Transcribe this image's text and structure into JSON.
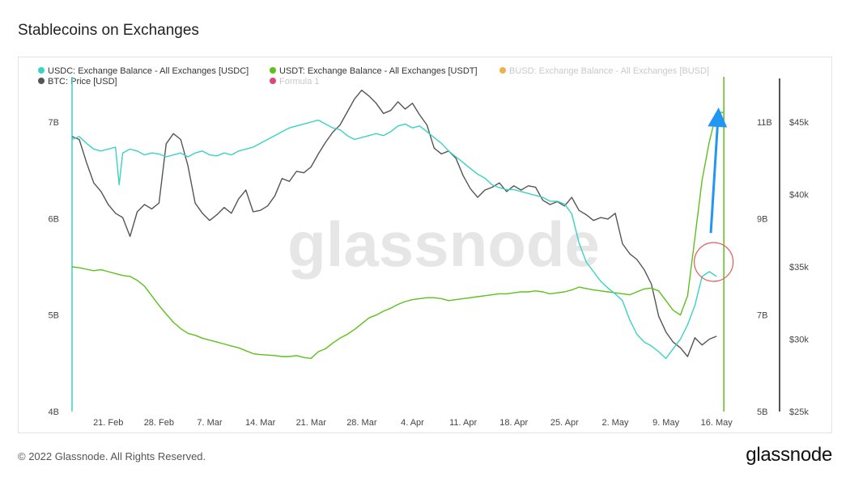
{
  "header": {
    "title": "Stablecoins on Exchanges"
  },
  "footer": {
    "copyright": "© 2022 Glassnode. All Rights Reserved.",
    "brand": "glassnode"
  },
  "watermark": "glassnode",
  "colors": {
    "usdc": "#3ad2c4",
    "usdt": "#5cc11a",
    "busd": "#f0b14a",
    "btc": "#555555",
    "formula": "#e0457b",
    "arrow": "#2196f3",
    "circle": "#e05a5a"
  },
  "chart_data": {
    "type": "line",
    "legend": [
      {
        "key": "usdc",
        "label": "USDC: Exchange Balance - All Exchanges [USDC]",
        "active": true
      },
      {
        "key": "usdt",
        "label": "USDT: Exchange Balance - All Exchanges [USDT]",
        "active": true
      },
      {
        "key": "busd",
        "label": "BUSD: Exchange Balance - All Exchanges [BUSD]",
        "active": false
      },
      {
        "key": "btc",
        "label": "BTC: Price [USD]",
        "active": true
      },
      {
        "key": "formula",
        "label": "Formula 1",
        "active": false
      }
    ],
    "x_ticks": [
      "21. Feb",
      "28. Feb",
      "7. Mar",
      "14. Mar",
      "21. Mar",
      "28. Mar",
      "4. Apr",
      "11. Apr",
      "18. Apr",
      "25. Apr",
      "2. May",
      "9. May",
      "16. May"
    ],
    "x_tick_days": [
      21,
      28,
      35,
      42,
      49,
      56,
      63,
      70,
      77,
      84,
      91,
      98,
      105
    ],
    "x_range_days": [
      16,
      109
    ],
    "axes": {
      "usdc": {
        "ticks": [
          "4B",
          "5B",
          "6B",
          "7B"
        ],
        "range": [
          4.0,
          7.0
        ]
      },
      "usdt": {
        "ticks": [
          "5B",
          "7B",
          "9B",
          "11B"
        ],
        "range": [
          5.0,
          11.0
        ]
      },
      "btc": {
        "ticks": [
          "$25k",
          "$30k",
          "$35k",
          "$40k",
          "$45k"
        ],
        "range": [
          25000,
          45000
        ]
      }
    },
    "series": [
      {
        "key": "usdc",
        "name": "USDC: Exchange Balance - All Exchanges [USDC]",
        "points": [
          [
            16,
            6.82
          ],
          [
            17,
            6.85
          ],
          [
            18,
            6.78
          ],
          [
            19,
            6.72
          ],
          [
            20,
            6.7
          ],
          [
            21,
            6.72
          ],
          [
            22,
            6.74
          ],
          [
            22.5,
            6.35
          ],
          [
            23,
            6.68
          ],
          [
            24,
            6.72
          ],
          [
            25,
            6.7
          ],
          [
            26,
            6.66
          ],
          [
            27,
            6.68
          ],
          [
            28,
            6.67
          ],
          [
            29,
            6.64
          ],
          [
            30,
            6.66
          ],
          [
            31,
            6.68
          ],
          [
            32,
            6.64
          ],
          [
            33,
            6.68
          ],
          [
            34,
            6.7
          ],
          [
            35,
            6.66
          ],
          [
            36,
            6.65
          ],
          [
            37,
            6.68
          ],
          [
            38,
            6.66
          ],
          [
            39,
            6.7
          ],
          [
            40,
            6.72
          ],
          [
            41,
            6.74
          ],
          [
            42,
            6.78
          ],
          [
            43,
            6.82
          ],
          [
            44,
            6.86
          ],
          [
            45,
            6.9
          ],
          [
            46,
            6.94
          ],
          [
            47,
            6.96
          ],
          [
            48,
            6.98
          ],
          [
            49,
            7.0
          ],
          [
            50,
            7.02
          ],
          [
            51,
            6.98
          ],
          [
            52,
            6.94
          ],
          [
            53,
            6.92
          ],
          [
            54,
            6.86
          ],
          [
            55,
            6.82
          ],
          [
            56,
            6.84
          ],
          [
            57,
            6.86
          ],
          [
            58,
            6.88
          ],
          [
            59,
            6.86
          ],
          [
            60,
            6.9
          ],
          [
            61,
            6.96
          ],
          [
            62,
            6.98
          ],
          [
            63,
            6.94
          ],
          [
            64,
            6.96
          ],
          [
            65,
            6.9
          ],
          [
            66,
            6.84
          ],
          [
            67,
            6.78
          ],
          [
            68,
            6.7
          ],
          [
            69,
            6.64
          ],
          [
            70,
            6.58
          ],
          [
            71,
            6.52
          ],
          [
            72,
            6.46
          ],
          [
            73,
            6.42
          ],
          [
            74,
            6.35
          ],
          [
            75,
            6.32
          ],
          [
            76,
            6.3
          ],
          [
            77,
            6.3
          ],
          [
            78,
            6.28
          ],
          [
            79,
            6.26
          ],
          [
            80,
            6.24
          ],
          [
            81,
            6.22
          ],
          [
            82,
            6.18
          ],
          [
            83,
            6.18
          ],
          [
            84,
            6.15
          ],
          [
            85,
            6.05
          ],
          [
            86,
            5.75
          ],
          [
            87,
            5.55
          ],
          [
            88,
            5.45
          ],
          [
            89,
            5.35
          ],
          [
            90,
            5.28
          ],
          [
            91,
            5.22
          ],
          [
            92,
            5.15
          ],
          [
            93,
            4.95
          ],
          [
            94,
            4.8
          ],
          [
            95,
            4.72
          ],
          [
            96,
            4.68
          ],
          [
            97,
            4.62
          ],
          [
            98,
            4.55
          ],
          [
            99,
            4.65
          ],
          [
            100,
            4.75
          ],
          [
            101,
            4.9
          ],
          [
            102,
            5.1
          ],
          [
            103,
            5.4
          ],
          [
            104,
            5.45
          ],
          [
            105,
            5.4
          ]
        ]
      },
      {
        "key": "usdt",
        "name": "USDT: Exchange Balance - All Exchanges [USDT]",
        "points": [
          [
            16,
            8.0
          ],
          [
            17,
            7.98
          ],
          [
            18,
            7.95
          ],
          [
            19,
            7.92
          ],
          [
            20,
            7.94
          ],
          [
            21,
            7.9
          ],
          [
            22,
            7.86
          ],
          [
            23,
            7.82
          ],
          [
            24,
            7.8
          ],
          [
            25,
            7.72
          ],
          [
            26,
            7.6
          ],
          [
            27,
            7.4
          ],
          [
            28,
            7.2
          ],
          [
            29,
            7.02
          ],
          [
            30,
            6.85
          ],
          [
            31,
            6.72
          ],
          [
            32,
            6.62
          ],
          [
            33,
            6.58
          ],
          [
            34,
            6.52
          ],
          [
            35,
            6.48
          ],
          [
            36,
            6.44
          ],
          [
            37,
            6.4
          ],
          [
            38,
            6.36
          ],
          [
            39,
            6.32
          ],
          [
            40,
            6.26
          ],
          [
            41,
            6.2
          ],
          [
            42,
            6.18
          ],
          [
            43,
            6.17
          ],
          [
            44,
            6.16
          ],
          [
            45,
            6.14
          ],
          [
            46,
            6.14
          ],
          [
            47,
            6.16
          ],
          [
            48,
            6.12
          ],
          [
            49,
            6.1
          ],
          [
            50,
            6.24
          ],
          [
            51,
            6.3
          ],
          [
            52,
            6.42
          ],
          [
            53,
            6.52
          ],
          [
            54,
            6.6
          ],
          [
            55,
            6.7
          ],
          [
            56,
            6.82
          ],
          [
            57,
            6.94
          ],
          [
            58,
            7.0
          ],
          [
            59,
            7.08
          ],
          [
            60,
            7.14
          ],
          [
            61,
            7.22
          ],
          [
            62,
            7.28
          ],
          [
            63,
            7.32
          ],
          [
            64,
            7.34
          ],
          [
            65,
            7.36
          ],
          [
            66,
            7.36
          ],
          [
            67,
            7.34
          ],
          [
            68,
            7.3
          ],
          [
            69,
            7.32
          ],
          [
            70,
            7.34
          ],
          [
            71,
            7.36
          ],
          [
            72,
            7.38
          ],
          [
            73,
            7.4
          ],
          [
            74,
            7.42
          ],
          [
            75,
            7.44
          ],
          [
            76,
            7.44
          ],
          [
            77,
            7.46
          ],
          [
            78,
            7.48
          ],
          [
            79,
            7.48
          ],
          [
            80,
            7.5
          ],
          [
            81,
            7.48
          ],
          [
            82,
            7.44
          ],
          [
            83,
            7.46
          ],
          [
            84,
            7.48
          ],
          [
            85,
            7.52
          ],
          [
            86,
            7.58
          ],
          [
            87,
            7.55
          ],
          [
            88,
            7.52
          ],
          [
            89,
            7.5
          ],
          [
            90,
            7.48
          ],
          [
            91,
            7.46
          ],
          [
            92,
            7.44
          ],
          [
            93,
            7.42
          ],
          [
            94,
            7.48
          ],
          [
            95,
            7.54
          ],
          [
            96,
            7.56
          ],
          [
            97,
            7.5
          ],
          [
            98,
            7.3
          ],
          [
            99,
            7.1
          ],
          [
            100,
            7.0
          ],
          [
            101,
            7.4
          ],
          [
            102,
            8.6
          ],
          [
            103,
            9.8
          ],
          [
            104,
            10.6
          ],
          [
            105,
            11.2
          ],
          [
            106,
            11.2
          ]
        ]
      },
      {
        "key": "btc",
        "name": "BTC: Price [USD]",
        "points": [
          [
            16,
            44000
          ],
          [
            17,
            43800
          ],
          [
            18,
            42200
          ],
          [
            19,
            40800
          ],
          [
            20,
            40200
          ],
          [
            21,
            39300
          ],
          [
            22,
            38700
          ],
          [
            23,
            38400
          ],
          [
            24,
            37100
          ],
          [
            25,
            38800
          ],
          [
            26,
            39300
          ],
          [
            27,
            39000
          ],
          [
            28,
            39400
          ],
          [
            29,
            43500
          ],
          [
            30,
            44200
          ],
          [
            31,
            43800
          ],
          [
            32,
            42000
          ],
          [
            33,
            39400
          ],
          [
            34,
            38700
          ],
          [
            35,
            38200
          ],
          [
            36,
            38600
          ],
          [
            37,
            39100
          ],
          [
            38,
            38700
          ],
          [
            39,
            39700
          ],
          [
            40,
            40300
          ],
          [
            41,
            38800
          ],
          [
            42,
            38900
          ],
          [
            43,
            39200
          ],
          [
            44,
            39900
          ],
          [
            45,
            41100
          ],
          [
            46,
            40900
          ],
          [
            47,
            41600
          ],
          [
            48,
            41500
          ],
          [
            49,
            41900
          ],
          [
            50,
            42800
          ],
          [
            51,
            43600
          ],
          [
            52,
            44300
          ],
          [
            53,
            44800
          ],
          [
            54,
            45700
          ],
          [
            55,
            46600
          ],
          [
            56,
            47200
          ],
          [
            57,
            46800
          ],
          [
            58,
            46300
          ],
          [
            59,
            45600
          ],
          [
            60,
            45800
          ],
          [
            61,
            46400
          ],
          [
            62,
            45900
          ],
          [
            63,
            46300
          ],
          [
            64,
            45500
          ],
          [
            65,
            44800
          ],
          [
            66,
            43200
          ],
          [
            67,
            42800
          ],
          [
            68,
            43000
          ],
          [
            69,
            42500
          ],
          [
            70,
            41300
          ],
          [
            71,
            40400
          ],
          [
            72,
            39800
          ],
          [
            73,
            40300
          ],
          [
            74,
            40500
          ],
          [
            75,
            40800
          ],
          [
            76,
            40200
          ],
          [
            77,
            40600
          ],
          [
            78,
            40300
          ],
          [
            79,
            40600
          ],
          [
            80,
            40500
          ],
          [
            81,
            39600
          ],
          [
            82,
            39300
          ],
          [
            83,
            39500
          ],
          [
            84,
            39200
          ],
          [
            85,
            39800
          ],
          [
            86,
            38900
          ],
          [
            87,
            38600
          ],
          [
            88,
            38200
          ],
          [
            89,
            38400
          ],
          [
            90,
            38300
          ],
          [
            91,
            38700
          ],
          [
            92,
            36600
          ],
          [
            93,
            35900
          ],
          [
            94,
            35500
          ],
          [
            95,
            34800
          ],
          [
            96,
            33800
          ],
          [
            97,
            31600
          ],
          [
            98,
            30500
          ],
          [
            99,
            29800
          ],
          [
            100,
            29400
          ],
          [
            101,
            28800
          ],
          [
            102,
            30100
          ],
          [
            103,
            29600
          ],
          [
            104,
            30000
          ],
          [
            105,
            30200
          ]
        ]
      }
    ],
    "annotations": [
      {
        "type": "arrow",
        "from": [
          104.2,
          8.7
        ],
        "to": [
          105.2,
          11.1
        ],
        "axis": "usdt"
      },
      {
        "type": "circle",
        "center": [
          104.6,
          5.55
        ],
        "axis": "usdc"
      }
    ]
  }
}
